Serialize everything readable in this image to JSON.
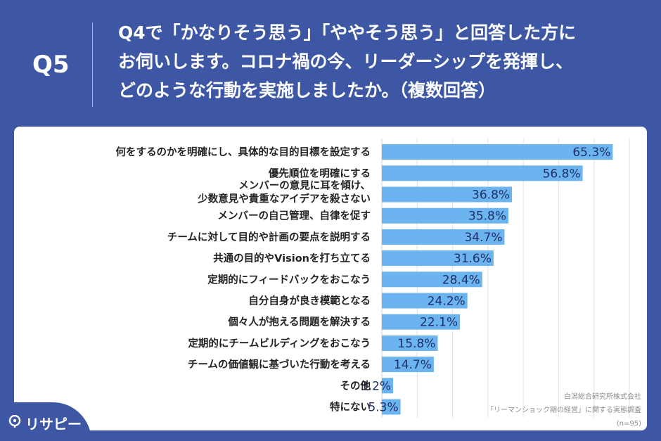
{
  "question": {
    "number": "Q5",
    "lines": [
      "Q4で「かなりそう思う」「ややそう思う」と回答した方に",
      "お伺いします。コロナ禍の今、リーダーシップを発揮し、",
      "どのような行動を実施しましたか。（複数回答）"
    ]
  },
  "chart_data": {
    "type": "bar",
    "orientation": "horizontal",
    "categories": [
      "何をするのかを明確にし、具体的な目的目標を設定する",
      "優先順位を明確にする",
      "メンバーの意見に耳を傾け、\n少数意見や貴重なアイデアを殺さない",
      "メンバーの自己管理、自律を促す",
      "チームに対して目的や計画の要点を説明する",
      "共通の目的やVisionを打ち立てる",
      "定期的にフィードバックをおこなう",
      "自分自身が良き模範となる",
      "個々人が抱える問題を解決する",
      "定期的にチームビルディングをおこなう",
      "チームの価値観に基づいた行動を考える",
      "その他",
      "特にない"
    ],
    "values": [
      65.3,
      56.8,
      36.8,
      35.8,
      34.7,
      31.6,
      28.4,
      24.2,
      22.1,
      15.8,
      14.7,
      3.2,
      5.3
    ],
    "value_labels": [
      "65.3%",
      "56.8%",
      "36.8%",
      "35.8%",
      "34.7%",
      "31.6%",
      "28.4%",
      "24.2%",
      "22.1%",
      "15.8%",
      "14.7%",
      "3.2%",
      "5.3%"
    ],
    "xlim": [
      0,
      70
    ],
    "grid": true,
    "bar_color": "#6cb4f0"
  },
  "source": {
    "lines": [
      "白潟総合研究所株式会社",
      "「リーマンショック期の経営」に関する実態調査",
      "(n=95)"
    ]
  },
  "brand": {
    "name": "リサピー",
    "color": "#3d57a5"
  }
}
